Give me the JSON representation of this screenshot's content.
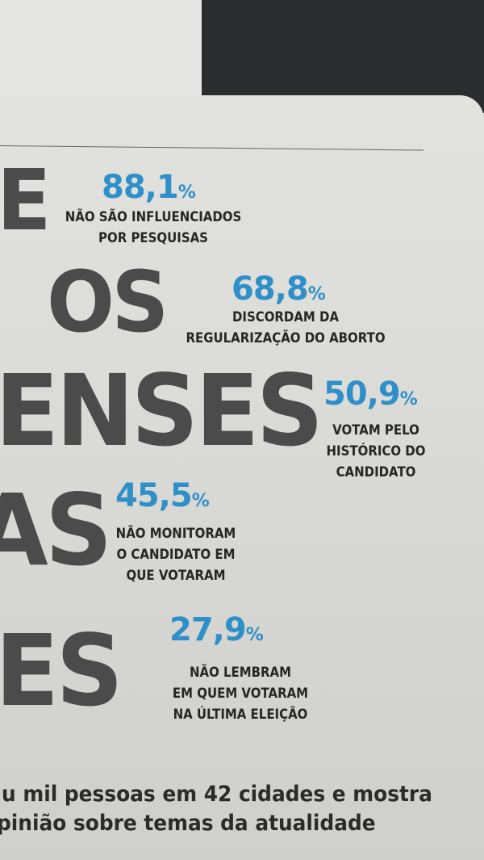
{
  "background_words": [
    "E",
    "OS",
    "ENSES",
    "AS",
    "ES"
  ],
  "stats": [
    {
      "value": "88,1",
      "unit": "%",
      "label": [
        "NÃO SÃO INFLUENCIADOS",
        "POR PESQUISAS"
      ]
    },
    {
      "value": "68,8",
      "unit": "%",
      "label": [
        "DISCORDAM DA",
        "REGULARIZAÇÃO DO ABORTO"
      ]
    },
    {
      "value": "50,9",
      "unit": "%",
      "label": [
        "VOTAM PELO",
        "HISTÓRICO DO",
        "CANDIDATO"
      ]
    },
    {
      "value": "45,5",
      "unit": "%",
      "label": [
        "NÃO MONITORAM",
        "O CANDIDATO EM",
        "QUE VOTARAM"
      ]
    },
    {
      "value": "27,9",
      "unit": "%",
      "label": [
        "NÃO LEMBRAM",
        "EM QUEM VOTARAM",
        "NA ÚLTIMA ELEIÇÃO"
      ]
    }
  ],
  "body_text": [
    "u mil pessoas em 42 cidades e mostra",
    "pinião sobre temas da atualidade"
  ]
}
